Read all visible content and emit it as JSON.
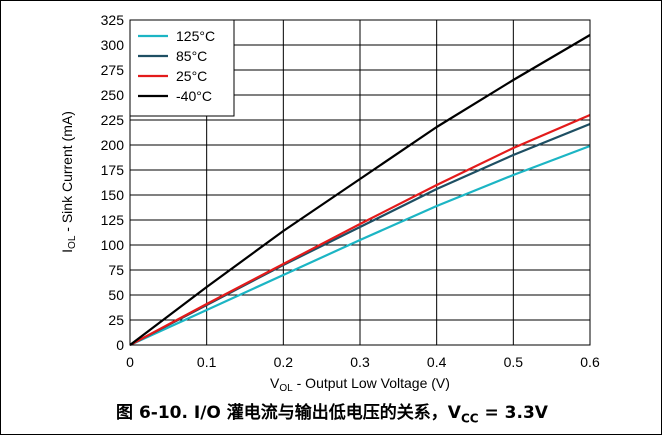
{
  "chart_data": {
    "type": "line",
    "xlabel_main": "V",
    "xlabel_sub": "OL",
    "xlabel_rest": " - Output Low Voltage (V)",
    "ylabel_main": "I",
    "ylabel_sub": "OL",
    "ylabel_rest": " - Sink Current (mA)",
    "xlim": [
      0,
      0.6
    ],
    "ylim": [
      0,
      325
    ],
    "x_ticks": [
      "0",
      "0.1",
      "0.2",
      "0.3",
      "0.4",
      "0.5",
      "0.6"
    ],
    "y_ticks": [
      "0",
      "25",
      "50",
      "75",
      "100",
      "125",
      "150",
      "175",
      "200",
      "225",
      "250",
      "275",
      "300",
      "325"
    ],
    "grid": true,
    "legend_position": "top-left",
    "series": [
      {
        "name": "125°C",
        "color": "#1cb5c4",
        "x": [
          0,
          0.1,
          0.2,
          0.3,
          0.4,
          0.5,
          0.6
        ],
        "y": [
          0,
          35,
          70,
          105,
          139,
          170,
          199
        ]
      },
      {
        "name": "85°C",
        "color": "#1e4f63",
        "x": [
          0,
          0.1,
          0.2,
          0.3,
          0.4,
          0.5,
          0.6
        ],
        "y": [
          0,
          40,
          80,
          118,
          156,
          190,
          221
        ]
      },
      {
        "name": "25°C",
        "color": "#e31b1b",
        "x": [
          0,
          0.1,
          0.2,
          0.3,
          0.4,
          0.5,
          0.6
        ],
        "y": [
          0,
          41,
          81,
          121,
          160,
          197,
          230
        ]
      },
      {
        "name": "-40°C",
        "color": "#000000",
        "x": [
          0,
          0.1,
          0.2,
          0.3,
          0.4,
          0.5,
          0.6
        ],
        "y": [
          0,
          58,
          114,
          166,
          218,
          265,
          310
        ]
      }
    ]
  },
  "caption": {
    "prefix": "图 6-10. I/O 灌电流与输出低电压的关系，V",
    "sub": "CC",
    "suffix": " = 3.3V"
  }
}
